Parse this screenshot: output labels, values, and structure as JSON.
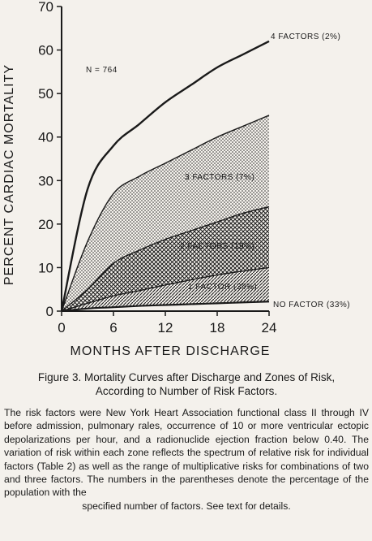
{
  "chart_data": {
    "type": "line",
    "ylabel": "PERCENT CARDIAC MORTALITY",
    "xlabel": "MONTHS AFTER DISCHARGE",
    "xlim": [
      0,
      24
    ],
    "ylim": [
      0,
      70
    ],
    "x_ticks": [
      0,
      6,
      12,
      18,
      24
    ],
    "y_ticks": [
      0,
      10,
      20,
      30,
      40,
      50,
      60,
      70
    ],
    "x": [
      0,
      3,
      6,
      9,
      12,
      15,
      18,
      21,
      24
    ],
    "series": [
      {
        "name": "4 FACTORS (2%)",
        "values": [
          0,
          28,
          38,
          43,
          48,
          52,
          56,
          59,
          62
        ]
      },
      {
        "name": "3 FACTORS (7%)",
        "values": [
          0,
          16,
          27,
          31,
          34,
          37,
          40,
          42.5,
          45
        ]
      },
      {
        "name": "2 FACTORS (19%)",
        "values": [
          0,
          5,
          11,
          14,
          16.5,
          18.5,
          20.5,
          22.5,
          24
        ]
      },
      {
        "name": "1 FACTOR (39%)",
        "values": [
          0,
          1.8,
          3.5,
          4.7,
          6,
          7.2,
          8.3,
          9.2,
          10
        ]
      },
      {
        "name": "NO FACTOR (33%)",
        "values": [
          0,
          0.6,
          0.9,
          1.2,
          1.4,
          1.6,
          1.8,
          2,
          2.2
        ]
      }
    ],
    "annotations": {
      "n": "N = 764"
    },
    "grid": false,
    "legend": "inline"
  },
  "caption": {
    "title_line1": "Figure 3. Mortality Curves after Discharge and Zones of Risk,",
    "title_line2": "According to Number of Risk Factors.",
    "body": "The risk factors were New York Heart Association functional class II through IV before admission, pulmonary rales, occurrence of 10 or more ventricular ectopic depolarizations per hour, and a radionuclide ejection fraction below 0.40. The variation of risk within each zone reflects the spectrum of relative risk for individual factors (Table 2) as well as the range of multiplicative risks for combinations of two and three factors. The numbers in the parentheses denote the percentage of the population with the",
    "last_line": "specified number of factors. See text for details."
  }
}
